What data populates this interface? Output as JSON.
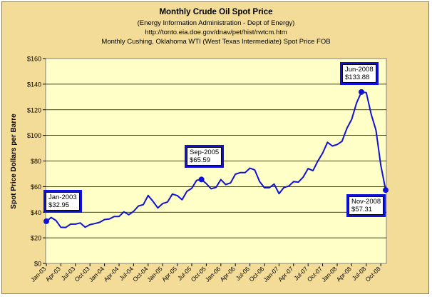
{
  "chart_data": {
    "type": "line",
    "title": "Monthly Crude Oil Spot Price",
    "subtitles": [
      "(Energy Information Administration - Dept of Energy)",
      "http://tonto.eia.doe.gov/dnav/pet/hist/rwtcm.htm",
      "Monthly Cushing, Oklahoma WTI (West Texas Intermediate) Spot Price FOB"
    ],
    "ylabel": "Spot Price Dollars per Barre",
    "xlabel": "",
    "ylim": [
      0,
      160
    ],
    "yticks": [
      "$0",
      "$20",
      "$40",
      "$60",
      "$80",
      "$100",
      "$120",
      "$140",
      "$160"
    ],
    "xticks": [
      "Jan-03",
      "Apr-03",
      "Jul-03",
      "Oct-03",
      "Jan-04",
      "Apr-04",
      "Jul-04",
      "Oct-04",
      "Jan-05",
      "Apr-05",
      "Jul-05",
      "Oct-05",
      "Jan-06",
      "Apr-06",
      "Jul-06",
      "Oct-06",
      "Jan-07",
      "Apr-07",
      "Jul-07",
      "Oct-07",
      "Jan-08",
      "Apr-08",
      "Jul-08",
      "Oct-08"
    ],
    "grid": "horizontal",
    "legend": "none",
    "series": [
      {
        "x_start": "Jan-03",
        "values": [
          32.95,
          35.9,
          33.5,
          28.2,
          28.1,
          30.7,
          30.7,
          31.6,
          28.3,
          30.3,
          31.1,
          32.1,
          34.3,
          34.7,
          36.7,
          36.7,
          40.3,
          38.0,
          40.7,
          44.9,
          45.9,
          53.1,
          48.5,
          43.3,
          46.8,
          48.0,
          54.2,
          53.0,
          49.8,
          56.3,
          58.7,
          64.9,
          65.59,
          62.3,
          58.3,
          59.4,
          65.5,
          61.6,
          62.9,
          69.7,
          70.9,
          70.9,
          74.4,
          73.0,
          63.9,
          59.1,
          59.1,
          62.0,
          54.5,
          59.3,
          60.4,
          63.9,
          63.5,
          67.5,
          74.1,
          72.4,
          79.9,
          86.2,
          94.6,
          91.7,
          92.9,
          95.4,
          105.5,
          112.6,
          125.4,
          133.88,
          133.4,
          116.7,
          104.1,
          76.6,
          57.31
        ],
        "color": "#1010d8"
      }
    ],
    "annotations": [
      {
        "label": "Jan-2003",
        "value": "$32.95"
      },
      {
        "label": "Sep-2005",
        "value": "$65.59"
      },
      {
        "label": "Jun-2008",
        "value": "$133.88"
      },
      {
        "label": "Nov-2008",
        "value": "$57.31"
      }
    ],
    "colors": {
      "background": "#f3dc97",
      "plot_area": "#ffffc8",
      "line": "#1010d8",
      "grid": "#000000"
    }
  }
}
